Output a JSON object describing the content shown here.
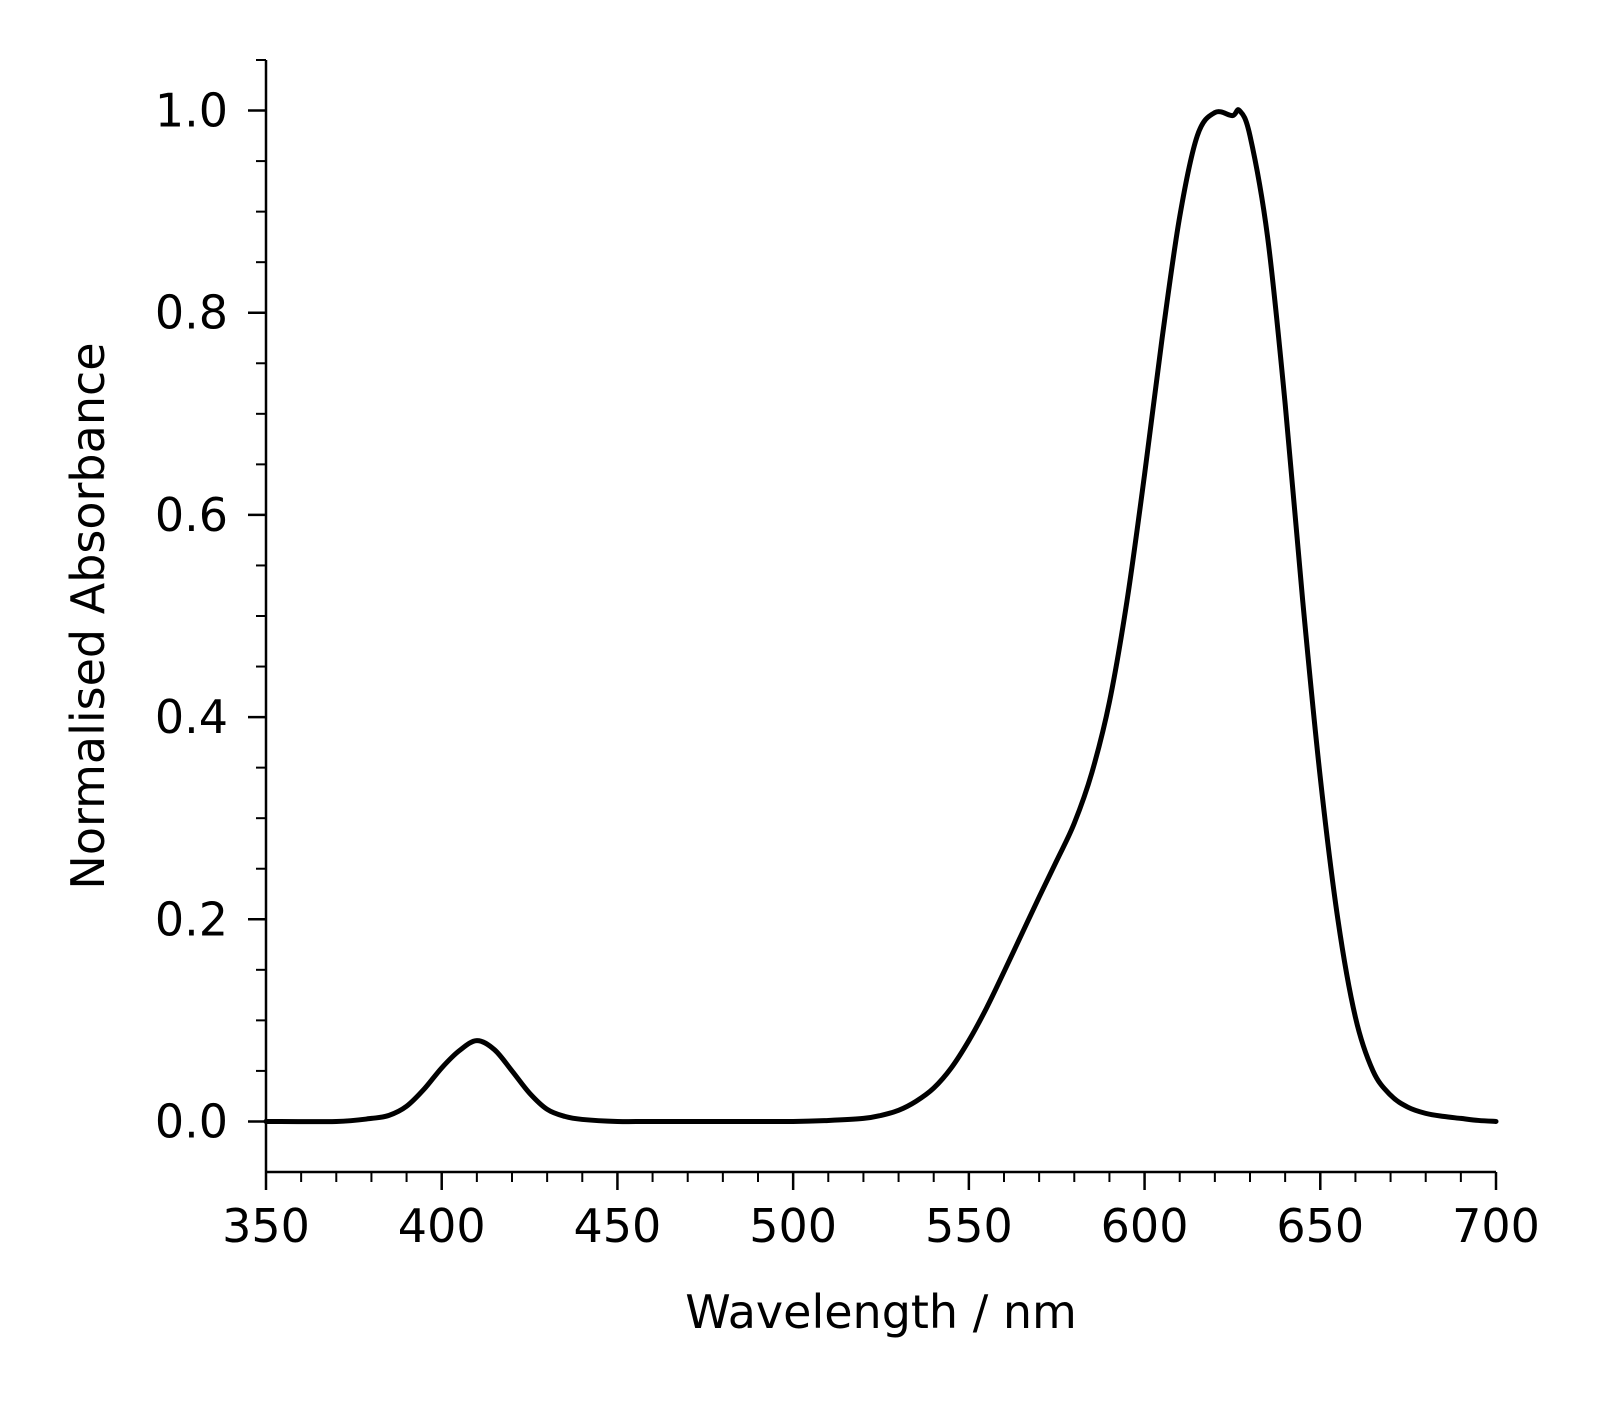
{
  "chart_data": {
    "type": "line",
    "title": "",
    "xlabel": "Wavelength / nm",
    "ylabel": "Normalised Absorbance",
    "xlim": [
      350,
      700
    ],
    "ylim": [
      -0.05,
      1.05
    ],
    "x_ticks": [
      350,
      400,
      450,
      500,
      550,
      600,
      650,
      700
    ],
    "x_tick_labels": [
      "350",
      "400",
      "450",
      "500",
      "550",
      "600",
      "650",
      "700"
    ],
    "x_minor_step": 10,
    "y_ticks": [
      0.0,
      0.2,
      0.4,
      0.6,
      0.8,
      1.0
    ],
    "y_tick_labels": [
      "0.0",
      "0.2",
      "0.4",
      "0.6",
      "0.8",
      "1.0"
    ],
    "y_minor_step": 0.05,
    "grid": false,
    "legend": "none",
    "line_color": "#000000",
    "series": [
      {
        "x": [
          350,
          370,
          380,
          385,
          390,
          395,
          400,
          405,
          410,
          415,
          420,
          425,
          430,
          435,
          440,
          450,
          460,
          480,
          500,
          510,
          520,
          525,
          530,
          535,
          540,
          545,
          550,
          555,
          560,
          565,
          570,
          575,
          580,
          585,
          590,
          595,
          600,
          605,
          610,
          615,
          620,
          625,
          627,
          630,
          635,
          640,
          645,
          650,
          655,
          660,
          665,
          670,
          675,
          680,
          685,
          690,
          695,
          700
        ],
        "y": [
          0.0,
          0.0,
          0.003,
          0.006,
          0.015,
          0.032,
          0.053,
          0.07,
          0.08,
          0.071,
          0.05,
          0.028,
          0.012,
          0.005,
          0.002,
          0.0,
          0.0,
          0.0,
          0.0,
          0.001,
          0.003,
          0.006,
          0.011,
          0.02,
          0.033,
          0.053,
          0.08,
          0.112,
          0.148,
          0.185,
          0.222,
          0.258,
          0.295,
          0.345,
          0.415,
          0.515,
          0.64,
          0.775,
          0.895,
          0.975,
          0.998,
          0.995,
          1.0,
          0.975,
          0.875,
          0.71,
          0.515,
          0.34,
          0.2,
          0.103,
          0.05,
          0.026,
          0.014,
          0.008,
          0.005,
          0.003,
          0.001,
          0.0
        ]
      }
    ]
  }
}
